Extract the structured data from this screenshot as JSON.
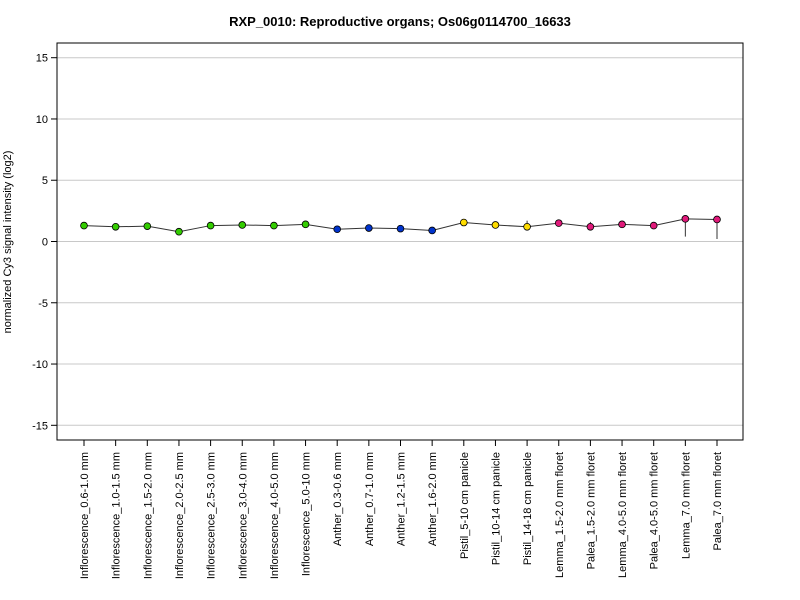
{
  "chart_data": {
    "type": "line",
    "title": "RXP_0010: Reproductive organs; Os06g0114700_16633",
    "xlabel": "",
    "ylabel": "normalized Cy3 signal intensity (log2)",
    "ylim": [
      -16.2,
      16.2
    ],
    "yticks": [
      15,
      10,
      5,
      0,
      -5,
      -10,
      -15
    ],
    "grid": true,
    "categories": [
      "Inflorescence_0.6-1.0 mm",
      "Inflorescence_1.0-1.5 mm",
      "Inflorescence_1.5-2.0 mm",
      "Inflorescence_2.0-2.5 mm",
      "Inflorescence_2.5-3.0 mm",
      "Inflorescence_3.0-4.0 mm",
      "Inflorescence_4.0-5.0 mm",
      "Inflorescence_5.0-10 mm",
      "Anther_0.3-0.6 mm",
      "Anther_0.7-1.0 mm",
      "Anther_1.2-1.5 mm",
      "Anther_1.6-2.0 mm",
      "Pistil_5-10 cm panicle",
      "Pistil_10-14 cm panicle",
      "Pistil_14-18 cm panicle",
      "Lemma_1.5-2.0 mm floret",
      "Palea_1.5-2.0 mm floret",
      "Lemma_4.0-5.0 mm floret",
      "Palea_4.0-5.0 mm floret",
      "Lemma_7.0 mm floret",
      "Palea_7.0 mm floret"
    ],
    "values": [
      1.3,
      1.2,
      1.25,
      0.8,
      1.3,
      1.35,
      1.3,
      1.4,
      1.0,
      1.1,
      1.05,
      0.9,
      1.55,
      1.35,
      1.2,
      1.5,
      1.2,
      1.4,
      1.3,
      1.85,
      1.8
    ],
    "error_low": [
      1.2,
      1.1,
      1.15,
      0.75,
      1.15,
      1.25,
      1.2,
      1.3,
      0.95,
      1.0,
      1.0,
      0.85,
      1.4,
      1.2,
      0.9,
      1.3,
      1.0,
      1.3,
      1.2,
      0.4,
      0.2
    ],
    "error_high": [
      1.4,
      1.3,
      1.35,
      0.9,
      1.45,
      1.45,
      1.4,
      1.5,
      1.1,
      1.2,
      1.15,
      1.0,
      1.7,
      1.55,
      1.7,
      1.8,
      1.6,
      1.5,
      1.4,
      2.0,
      1.9
    ],
    "colors": [
      "#33cc00",
      "#33cc00",
      "#33cc00",
      "#33cc00",
      "#33cc00",
      "#33cc00",
      "#33cc00",
      "#33cc00",
      "#0033cc",
      "#0033cc",
      "#0033cc",
      "#0033cc",
      "#ffdd00",
      "#ffdd00",
      "#ffdd00",
      "#e0197a",
      "#e0197a",
      "#e0197a",
      "#e0197a",
      "#e0197a",
      "#e0197a"
    ]
  }
}
